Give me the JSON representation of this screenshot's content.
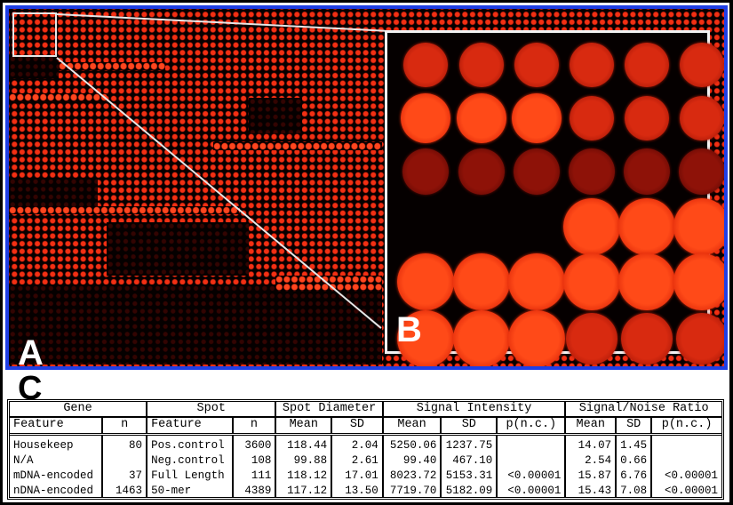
{
  "figure": {
    "panel_labels": {
      "a": "A",
      "b": "B",
      "c": "C"
    },
    "colors": {
      "panel_border": "#1f3fe6",
      "spot_bright": "#ff3a14",
      "spot_dim": "#8a0a05",
      "zoom_lines": "#e6e6e6",
      "background": "#000000"
    },
    "panel_a": {
      "description": "Full microarray scan, red fluorescence spots on black",
      "zoom_region": "top-left 6x6 spot block"
    },
    "panel_b": {
      "description": "Magnified 6x6 block of spots",
      "grid": [
        [
          "medium",
          "medium",
          "medium",
          "medium",
          "medium",
          "medium"
        ],
        [
          "bright",
          "bright",
          "bright",
          "medium",
          "medium",
          "medium"
        ],
        [
          "dim",
          "dim",
          "dim",
          "dim",
          "dim",
          "dim"
        ],
        [
          "empty",
          "empty",
          "empty",
          "bright",
          "bright",
          "bright"
        ],
        [
          "bright",
          "bright",
          "bright",
          "bright",
          "bright",
          "bright"
        ],
        [
          "bright",
          "bright",
          "bright",
          "medium",
          "medium",
          "medium"
        ]
      ]
    }
  },
  "table": {
    "group_headers": [
      {
        "label": "Gene",
        "span": 2
      },
      {
        "label": "Spot",
        "span": 2
      },
      {
        "label": "Spot Diameter",
        "span": 2
      },
      {
        "label": "Signal Intensity",
        "span": 3
      },
      {
        "label": "Signal/Noise Ratio",
        "span": 3
      }
    ],
    "columns": [
      "Feature",
      "n",
      "Feature",
      "n",
      "Mean",
      "SD",
      "Mean",
      "SD",
      "p(n.c.)",
      "Mean",
      "SD",
      "p(n.c.)"
    ],
    "rows": [
      [
        "Housekeep",
        "80",
        "Pos.control",
        "3600",
        "118.44",
        "2.04",
        "5250.06",
        "1237.75",
        "",
        "14.07",
        "1.45",
        ""
      ],
      [
        "N/A",
        "",
        "Neg.control",
        "108",
        "99.88",
        "2.61",
        "99.40",
        "467.10",
        "",
        "2.54",
        "0.66",
        ""
      ],
      [
        "mDNA-encoded",
        "37",
        "Full Length",
        "111",
        "118.12",
        "17.01",
        "8023.72",
        "5153.31",
        "<0.00001",
        "15.87",
        "6.76",
        "<0.00001"
      ],
      [
        "nDNA-encoded",
        "1463",
        "50-mer",
        "4389",
        "117.12",
        "13.50",
        "7719.70",
        "5182.09",
        "<0.00001",
        "15.43",
        "7.08",
        "<0.00001"
      ]
    ]
  }
}
